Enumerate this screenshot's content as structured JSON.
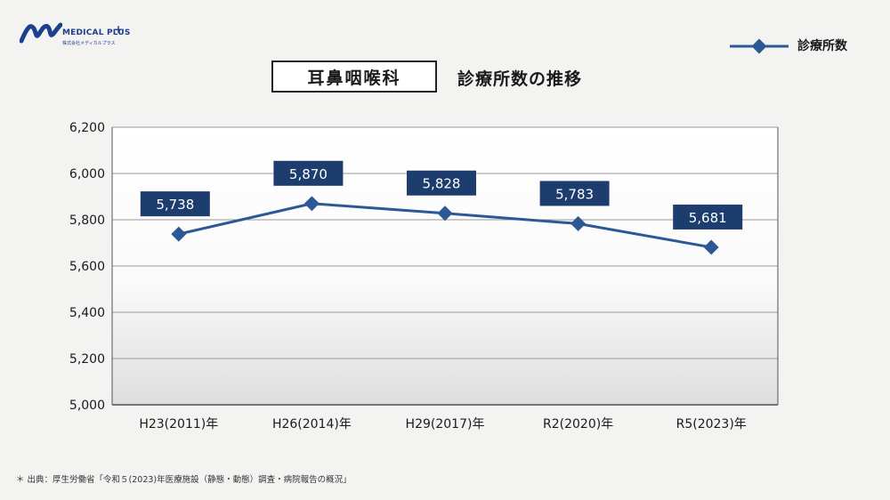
{
  "logo": {
    "name": "MEDICAL PLUS",
    "plus": "+",
    "sub": "株式会社メディカルプラス"
  },
  "header": {
    "title": "耳鼻咽喉科",
    "subtitle": "診療所数の推移"
  },
  "footnote": "＊ 出典：厚生労働省「令和５(2023)年医療施設（静態・動態）調査・病院報告の概況」",
  "colors": {
    "line": "#2d5896",
    "marker": "#2d5896",
    "label_bg": "#1c3d6e",
    "grid": "#999999"
  },
  "chart_data": {
    "type": "line",
    "categories": [
      "H23(2011)年",
      "H26(2014)年",
      "H29(2017)年",
      "R2(2020)年",
      "R5(2023)年"
    ],
    "series": [
      {
        "name": "診療所数",
        "values": [
          5738,
          5870,
          5828,
          5783,
          5681
        ]
      }
    ],
    "data_labels": [
      "5,738",
      "5,870",
      "5,828",
      "5,783",
      "5,681"
    ],
    "yticks": [
      "5,000",
      "5,200",
      "5,400",
      "5,600",
      "5,800",
      "6,000",
      "6,200"
    ],
    "ylim": [
      5000,
      6200
    ],
    "grid": true,
    "legend": "top-right"
  }
}
